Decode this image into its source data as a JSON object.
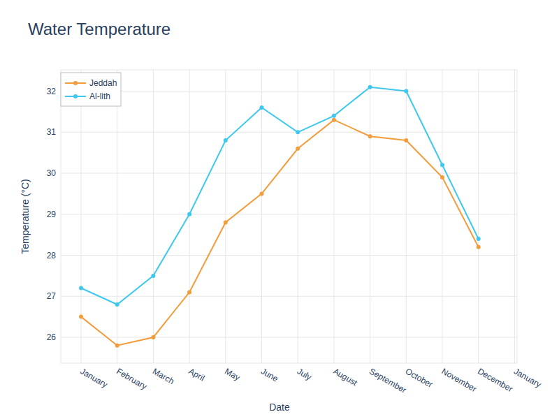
{
  "chart_data": {
    "type": "line",
    "title": "Water Temperature",
    "x_label": "Date",
    "y_label": "Temperature (°C)",
    "categories": [
      "January",
      "February",
      "March",
      "April",
      "May",
      "June",
      "July",
      "August",
      "September",
      "October",
      "November",
      "December",
      "January"
    ],
    "series": [
      {
        "name": "Jeddah",
        "color": "#f39c3c",
        "marker": "circle",
        "line_style": "solid",
        "values": [
          26.5,
          25.8,
          26.0,
          27.1,
          28.8,
          29.5,
          30.6,
          31.3,
          30.9,
          30.8,
          29.9,
          28.2,
          null
        ]
      },
      {
        "name": "Al-lith",
        "color": "#3fc8ef",
        "marker": "circle",
        "line_style": "solid",
        "values": [
          27.2,
          26.8,
          27.5,
          29.0,
          30.8,
          31.6,
          31.0,
          31.4,
          32.1,
          32.0,
          30.2,
          28.4,
          null
        ]
      }
    ],
    "ylim": [
      25.37,
      32.52
    ],
    "yticks": [
      26,
      27,
      28,
      29,
      30,
      31,
      32
    ],
    "grid": true,
    "legend": "top-left"
  }
}
